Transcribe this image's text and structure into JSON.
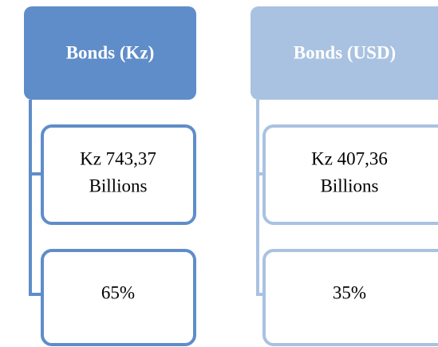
{
  "columns": [
    {
      "title": "Bonds (Kz)",
      "items": [
        {
          "lines": [
            "Kz 743,37",
            "Billions"
          ]
        },
        {
          "lines": [
            "65%"
          ]
        }
      ]
    },
    {
      "title": "Bonds (USD)",
      "items": [
        {
          "lines": [
            "Kz 407,36",
            "Billions"
          ]
        },
        {
          "lines": [
            "35%"
          ]
        }
      ]
    }
  ]
}
